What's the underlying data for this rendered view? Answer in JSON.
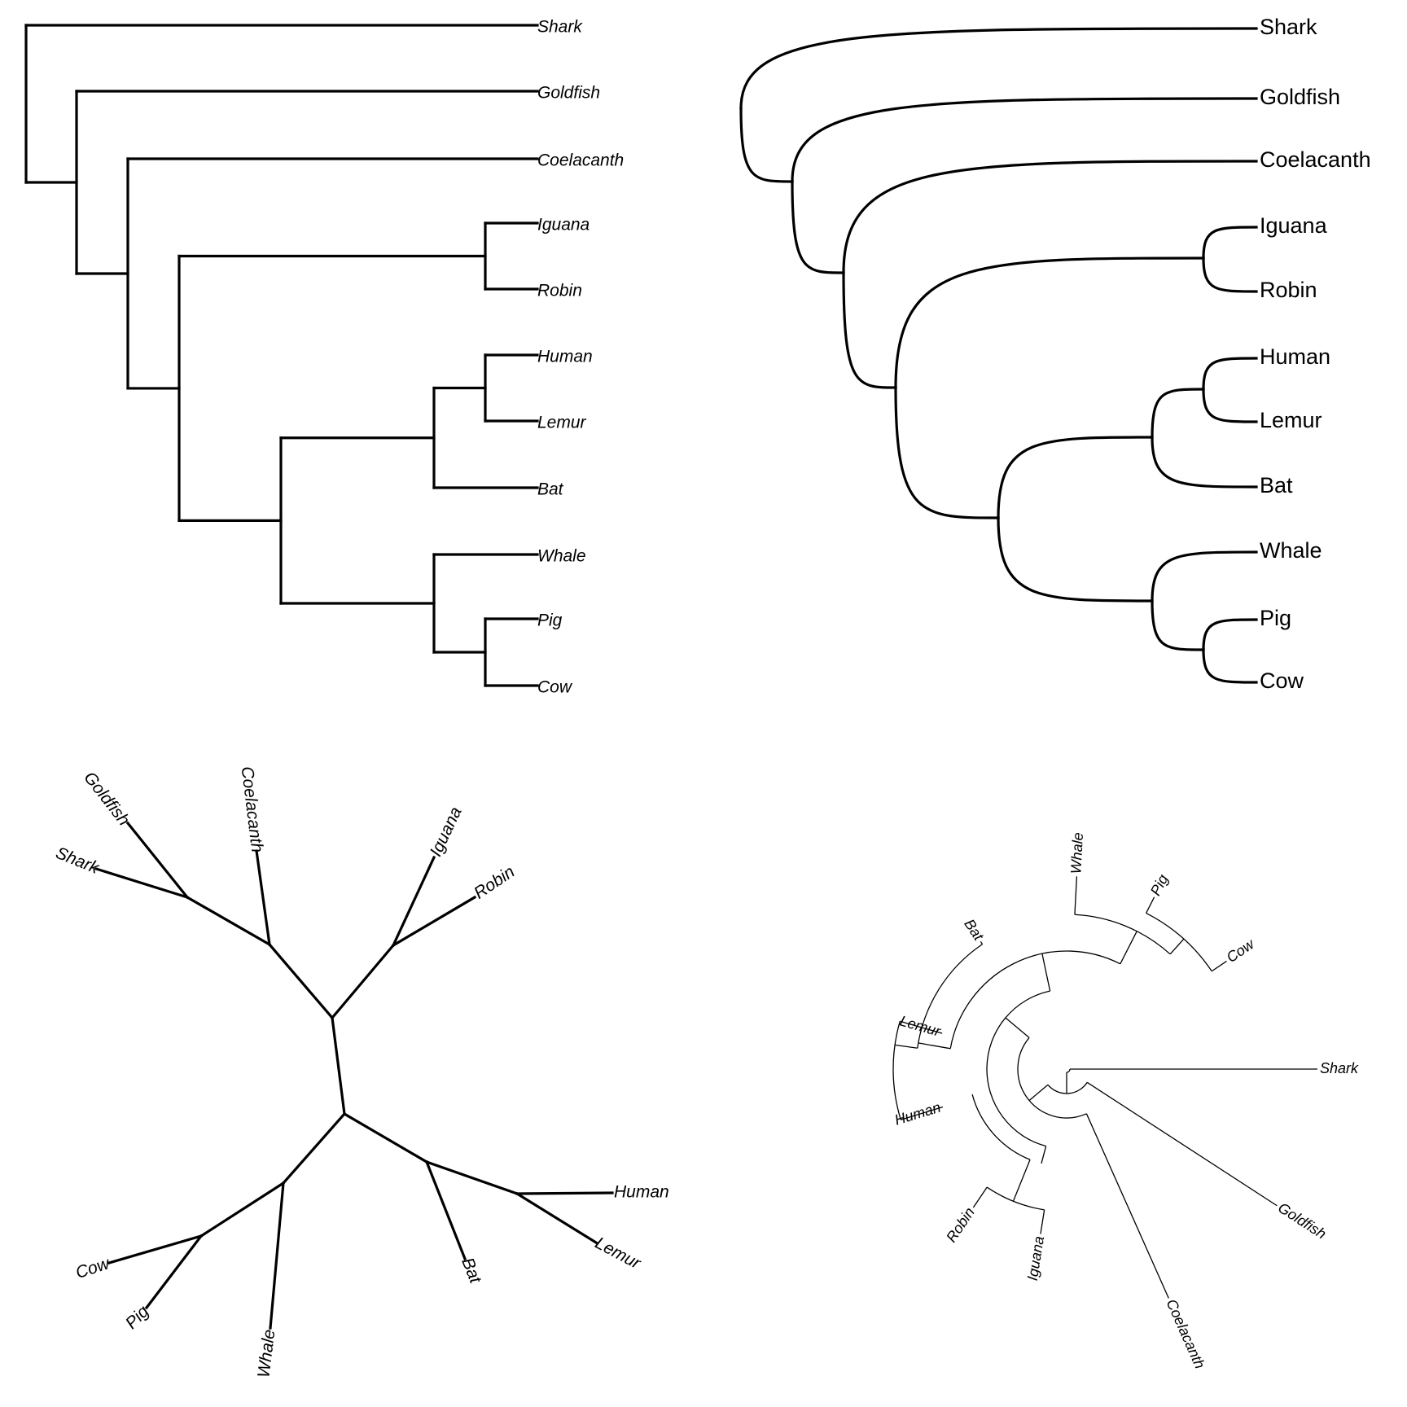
{
  "taxa": [
    "Shark",
    "Goldfish",
    "Coelacanth",
    "Iguana",
    "Robin",
    "Human",
    "Lemur",
    "Bat",
    "Whale",
    "Pig",
    "Cow"
  ],
  "panels": [
    {
      "id": "rectangular-cladogram",
      "style": "rectangular"
    },
    {
      "id": "curved-cladogram",
      "style": "curved"
    },
    {
      "id": "unrooted-tree",
      "style": "unrooted"
    },
    {
      "id": "circular-tree",
      "style": "fan"
    }
  ]
}
